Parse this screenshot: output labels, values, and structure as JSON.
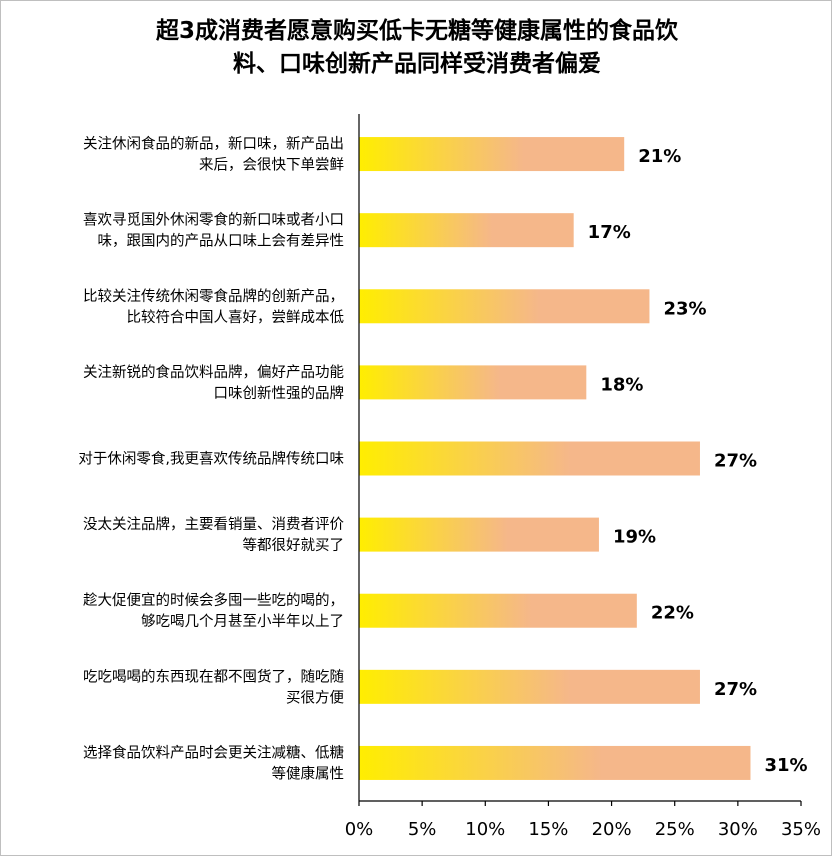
{
  "chart_data": {
    "type": "bar",
    "orientation": "horizontal",
    "title_lines": [
      "超3成消费者愿意购买低卡无糖等健康属性的食品饮",
      "料、口味创新产品同样受消费者偏爱"
    ],
    "categories": [
      [
        "关注休闲食品的新品，新口味，新产品出",
        "来后，会很快下单尝鲜"
      ],
      [
        "喜欢寻觅国外休闲零食的新口味或者小口",
        "味，跟国内的产品从口味上会有差异性"
      ],
      [
        "比较关注传统休闲零食品牌的创新产品，",
        "比较符合中国人喜好，尝鲜成本低"
      ],
      [
        "关注新锐的食品饮料品牌，偏好产品功能",
        "口味创新性强的品牌"
      ],
      [
        "对于休闲零食,我更喜欢传统品牌传统口味"
      ],
      [
        "没太关注品牌，主要看销量、消费者评价",
        "等都很好就买了"
      ],
      [
        "趁大促便宜的时候会多囤一些吃的喝的，",
        "够吃喝几个月甚至小半年以上了"
      ],
      [
        "吃吃喝喝的东西现在都不囤货了，随吃随",
        "买很方便"
      ],
      [
        "选择食品饮料产品时会更关注减糖、低糖",
        "等健康属性"
      ]
    ],
    "values": [
      21,
      17,
      23,
      18,
      27,
      19,
      22,
      27,
      31
    ],
    "value_labels": [
      "21%",
      "17%",
      "23%",
      "18%",
      "27%",
      "19%",
      "22%",
      "27%",
      "31%"
    ],
    "xlim": [
      0,
      35
    ],
    "xticks": [
      0,
      5,
      10,
      15,
      20,
      25,
      30,
      35
    ],
    "xtick_labels": [
      "0%",
      "5%",
      "10%",
      "15%",
      "20%",
      "25%",
      "30%",
      "35%"
    ],
    "grid": false,
    "legend": "none",
    "bar_gradient": [
      "#ffee00",
      "#f5b78a"
    ]
  }
}
